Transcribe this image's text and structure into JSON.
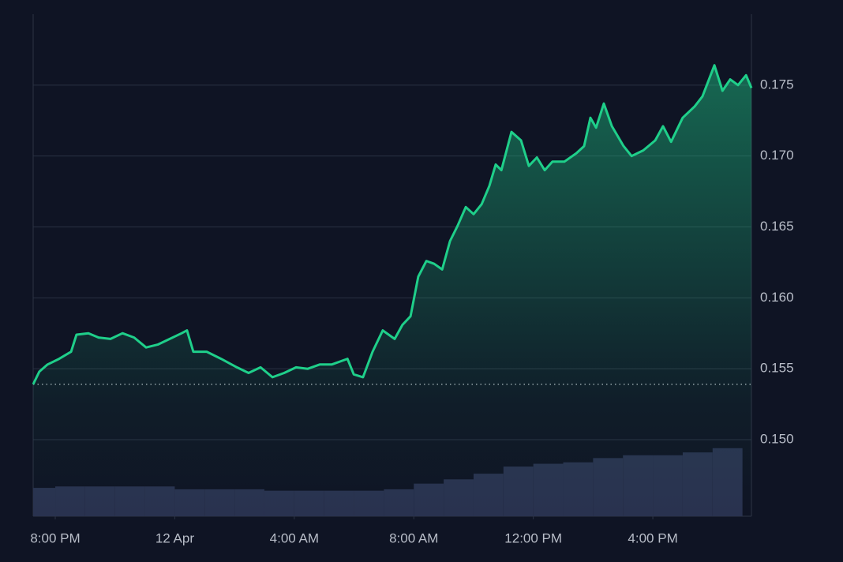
{
  "chart_data": {
    "type": "line",
    "x": [
      -0.74,
      -0.53,
      -0.26,
      0.13,
      0.53,
      0.71,
      1.11,
      1.45,
      1.85,
      2.25,
      2.64,
      3.04,
      3.43,
      3.83,
      4.23,
      4.41,
      4.62,
      5.07,
      5.55,
      6.08,
      6.47,
      6.87,
      7.27,
      7.66,
      8.06,
      8.45,
      8.85,
      9.25,
      9.78,
      9.99,
      10.3,
      10.62,
      10.96,
      11.36,
      11.62,
      11.89,
      12.15,
      12.42,
      12.68,
      12.95,
      13.21,
      13.47,
      13.74,
      14.0,
      14.27,
      14.53,
      14.74,
      14.93,
      15.27,
      15.59,
      15.85,
      16.12,
      16.38,
      16.64,
      17.04,
      17.44,
      17.7,
      17.91,
      18.1,
      18.36,
      18.63,
      19.02,
      19.29,
      19.68,
      20.08,
      20.34,
      20.61,
      21.0,
      21.4,
      21.66,
      22.06,
      22.33,
      22.59,
      22.85,
      23.12,
      23.3
    ],
    "series": [
      {
        "color": "#1fcf8a",
        "values": [
          0.1539,
          0.1548,
          0.1553,
          0.1557,
          0.1562,
          0.1574,
          0.1575,
          0.1572,
          0.1571,
          0.1575,
          0.1572,
          0.1565,
          0.1567,
          0.1571,
          0.1575,
          0.1577,
          0.1562,
          0.1562,
          0.1557,
          0.1551,
          0.1547,
          0.1551,
          0.1544,
          0.1547,
          0.1551,
          0.155,
          0.1553,
          0.1553,
          0.1557,
          0.1546,
          0.1544,
          0.1562,
          0.1577,
          0.1571,
          0.1581,
          0.1587,
          0.1615,
          0.1626,
          0.1624,
          0.162,
          0.164,
          0.1651,
          0.1664,
          0.1659,
          0.1666,
          0.1679,
          0.1694,
          0.169,
          0.1717,
          0.1711,
          0.1693,
          0.1699,
          0.169,
          0.1696,
          0.1696,
          0.1702,
          0.1707,
          0.1727,
          0.172,
          0.1737,
          0.1721,
          0.1707,
          0.17,
          0.1704,
          0.1711,
          0.1721,
          0.171,
          0.1727,
          0.1735,
          0.1742,
          0.1764,
          0.1746,
          0.1754,
          0.175,
          0.1757,
          0.1748
        ]
      }
    ],
    "bars": {
      "color": "#29324f",
      "x": [
        -0.5,
        0.5,
        1.5,
        2.5,
        3.5,
        4.5,
        5.5,
        6.5,
        7.5,
        8.5,
        9.5,
        10.5,
        11.5,
        12.5,
        13.5,
        14.5,
        15.5,
        16.5,
        17.5,
        18.5,
        19.5,
        20.5,
        21.5,
        22.5
      ],
      "values": [
        0.1466,
        0.1467,
        0.1467,
        0.1467,
        0.1467,
        0.1465,
        0.1465,
        0.1465,
        0.1464,
        0.1464,
        0.1464,
        0.1464,
        0.1465,
        0.1469,
        0.1472,
        0.1476,
        0.1481,
        0.1483,
        0.1484,
        0.1487,
        0.1489,
        0.1489,
        0.1491,
        0.1494
      ]
    },
    "baseline": 0.1539,
    "xlim": [
      -0.74,
      23.3
    ],
    "ylim": [
      0.1446,
      0.18
    ],
    "xticks": [
      {
        "value": 0,
        "label": "8:00 PM"
      },
      {
        "value": 4,
        "label": "12 Apr"
      },
      {
        "value": 8,
        "label": "4:00 AM"
      },
      {
        "value": 12,
        "label": "8:00 AM"
      },
      {
        "value": 16,
        "label": "12:00 PM"
      },
      {
        "value": 20,
        "label": "4:00 PM"
      }
    ],
    "yticks": [
      {
        "value": 0.15,
        "label": "0.150"
      },
      0.155,
      {
        "value": 0.16,
        "label": "0.160"
      },
      0.165,
      {
        "value": 0.17,
        "label": "0.170"
      },
      0.175
    ],
    "grid": true
  }
}
